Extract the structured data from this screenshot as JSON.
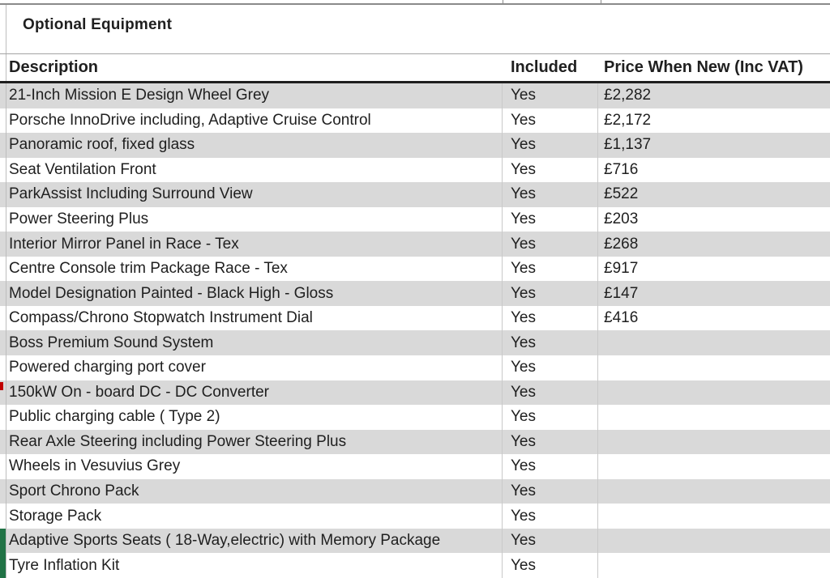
{
  "title": "Optional Equipment",
  "table": {
    "columns": [
      {
        "label": "Description"
      },
      {
        "label": "Included"
      },
      {
        "label": "Price When New (Inc VAT)"
      }
    ],
    "rows": [
      {
        "description": "21-Inch Mission E Design Wheel Grey",
        "included": "Yes",
        "price": "£2,282",
        "left_marker": null
      },
      {
        "description": "Porsche InnoDrive including, Adaptive Cruise Control",
        "included": "Yes",
        "price": "£2,172",
        "left_marker": null
      },
      {
        "description": "Panoramic roof, fixed glass",
        "included": "Yes",
        "price": "£1,137",
        "left_marker": null
      },
      {
        "description": "Seat Ventilation Front",
        "included": "Yes",
        "price": "£716",
        "left_marker": null
      },
      {
        "description": "ParkAssist Including Surround View",
        "included": "Yes",
        "price": "£522",
        "left_marker": null
      },
      {
        "description": "Power Steering Plus",
        "included": "Yes",
        "price": "£203",
        "left_marker": null
      },
      {
        "description": "Interior Mirror Panel in Race - Tex",
        "included": "Yes",
        "price": "£268",
        "left_marker": null
      },
      {
        "description": "Centre Console trim Package Race - Tex",
        "included": "Yes",
        "price": "£917",
        "left_marker": null
      },
      {
        "description": "Model Designation Painted - Black High - Gloss",
        "included": "Yes",
        "price": "£147",
        "left_marker": null
      },
      {
        "description": "Compass/Chrono Stopwatch Instrument Dial",
        "included": "Yes",
        "price": "£416",
        "left_marker": null
      },
      {
        "description": "Boss Premium Sound System",
        "included": "Yes",
        "price": "",
        "left_marker": null
      },
      {
        "description": "Powered charging port cover",
        "included": "Yes",
        "price": "",
        "left_marker": null
      },
      {
        "description": "150kW On - board DC - DC Converter",
        "included": "Yes",
        "price": "",
        "left_marker": "red"
      },
      {
        "description": "Public charging cable ( Type 2)",
        "included": "Yes",
        "price": "",
        "left_marker": null
      },
      {
        "description": "Rear Axle Steering including Power Steering Plus",
        "included": "Yes",
        "price": "",
        "left_marker": null
      },
      {
        "description": "Wheels in Vesuvius Grey",
        "included": "Yes",
        "price": "",
        "left_marker": null
      },
      {
        "description": "Sport Chrono Pack",
        "included": "Yes",
        "price": "",
        "left_marker": null
      },
      {
        "description": "Storage Pack",
        "included": "Yes",
        "price": "",
        "left_marker": null
      },
      {
        "description": "Adaptive Sports Seats ( 18-Way,electric) with Memory Package",
        "included": "Yes",
        "price": "",
        "left_marker": "green"
      },
      {
        "description": "Tyre Inflation Kit",
        "included": "Yes",
        "price": "",
        "left_marker": "green"
      }
    ]
  },
  "colors": {
    "stripe_grey": "#d9d9d9",
    "row_white": "#ffffff",
    "header_underline": "#1f1f1f",
    "grid_line": "#c9c9c9",
    "green_marker": "#217346",
    "red_marker": "#c00000",
    "text": "#1f1f1f"
  }
}
